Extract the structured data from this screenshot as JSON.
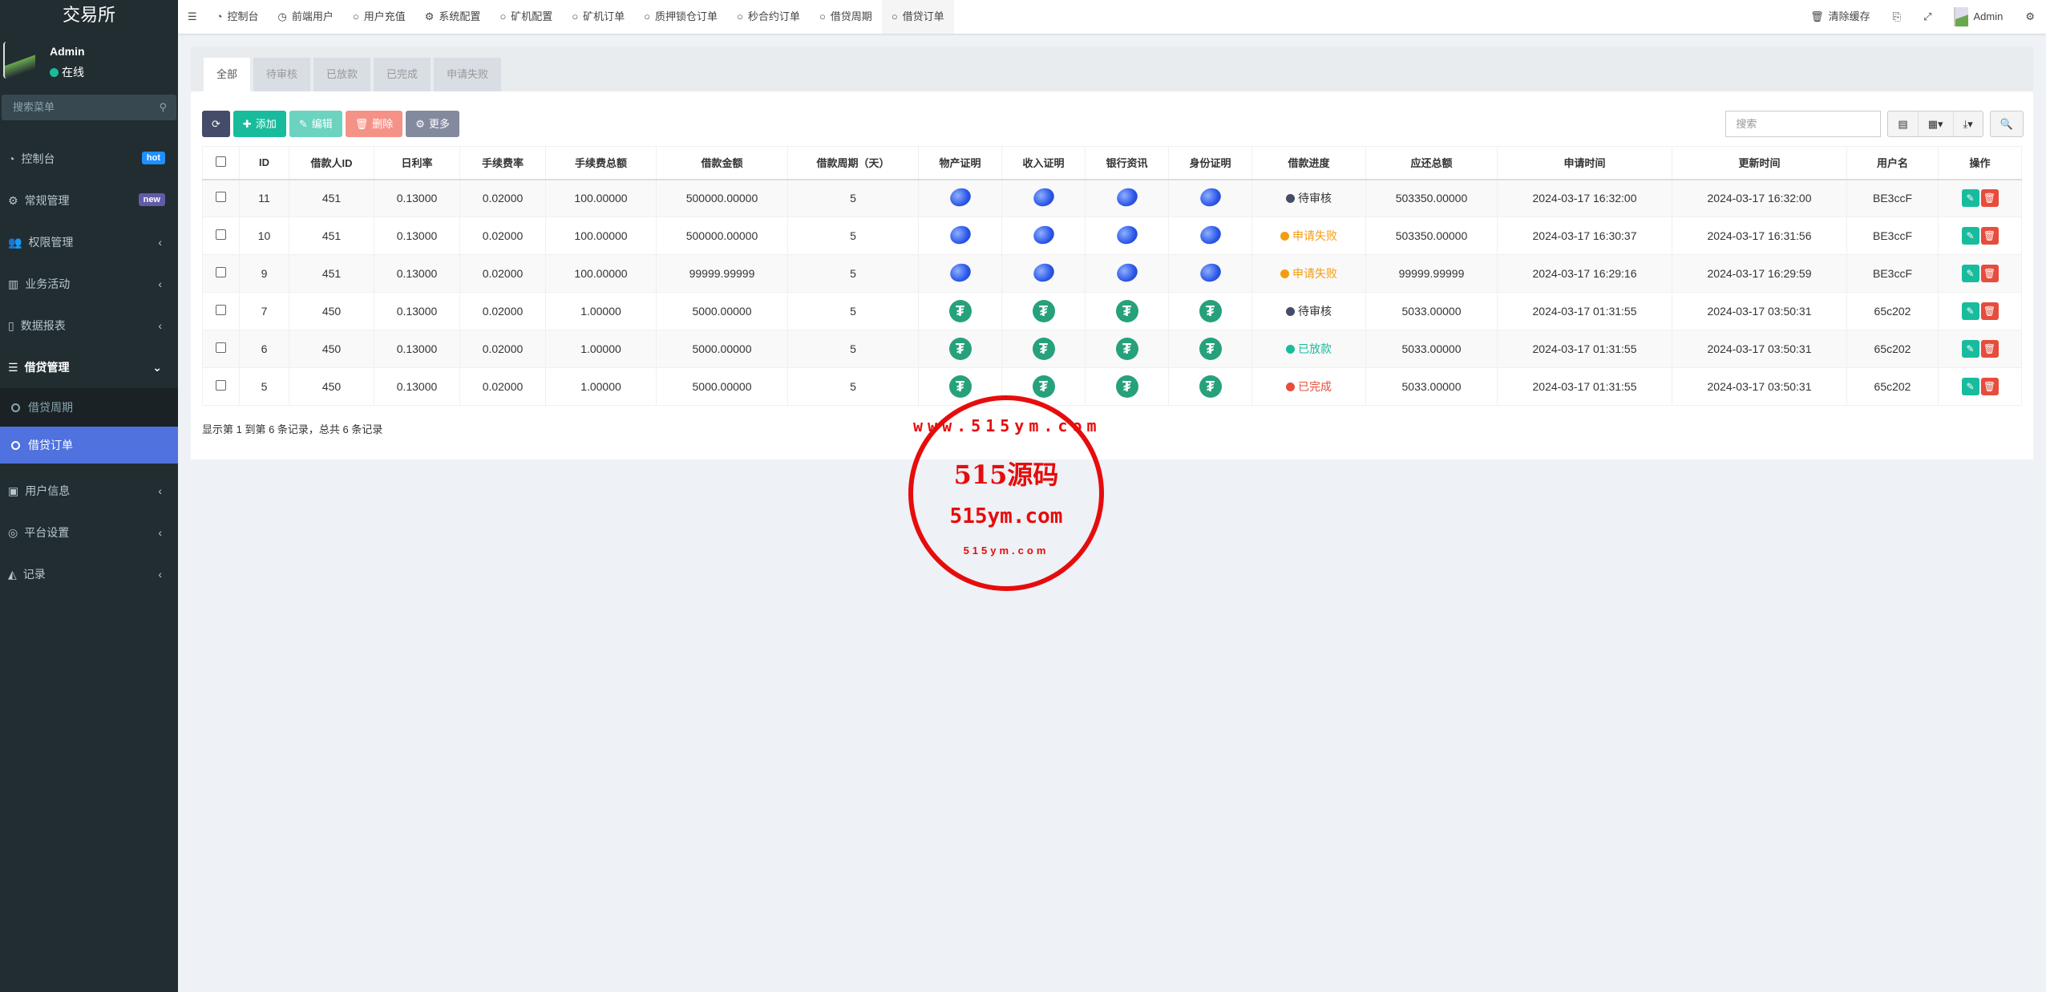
{
  "sidebar": {
    "title": "交易所",
    "user": {
      "name": "Admin",
      "status": "在线"
    },
    "search_placeholder": "搜索菜单",
    "items": [
      {
        "label": "控制台",
        "icon": "dashboard-icon",
        "badge": "hot",
        "badge_color": "#1e90ff"
      },
      {
        "label": "常规管理",
        "icon": "cogs-icon",
        "badge": "new",
        "badge_color": "#605ca8"
      },
      {
        "label": "权限管理",
        "icon": "users-icon"
      },
      {
        "label": "业务活动",
        "icon": "newspaper-icon"
      },
      {
        "label": "数据报表",
        "icon": "file-icon"
      },
      {
        "label": "借贷管理",
        "icon": "list-icon"
      }
    ],
    "sub": [
      {
        "label": "借贷周期"
      },
      {
        "label": "借贷订单"
      }
    ],
    "items2": [
      {
        "label": "用户信息",
        "icon": "address-book-icon"
      },
      {
        "label": "平台设置",
        "icon": "bullseye-icon"
      },
      {
        "label": "记录",
        "icon": "area-chart-icon"
      }
    ]
  },
  "topnav": {
    "items": [
      "控制台",
      "前端用户",
      "用户充值",
      "系统配置",
      "矿机配置",
      "矿机订单",
      "质押锁仓订单",
      "秒合约订单",
      "借贷周期",
      "借贷订单"
    ],
    "clear_cache": "清除缓存",
    "admin": "Admin"
  },
  "tabs": [
    "全部",
    "待审核",
    "已放款",
    "已完成",
    "申请失败"
  ],
  "toolbar": {
    "add": "添加",
    "edit": "编辑",
    "delete": "删除",
    "more": "更多",
    "search_placeholder": "搜索"
  },
  "table": {
    "headers": [
      "ID",
      "借款人ID",
      "日利率",
      "手续费率",
      "手续费总额",
      "借款金额",
      "借款周期（天）",
      "物产证明",
      "收入证明",
      "银行资讯",
      "身份证明",
      "借款进度",
      "应还总额",
      "申请时间",
      "更新时间",
      "用户名",
      "操作"
    ],
    "rows": [
      {
        "id": "11",
        "uid": "451",
        "rate": "0.13000",
        "fee_rate": "0.02000",
        "fee": "100.00000",
        "amount": "500000.00000",
        "days": "5",
        "img": "planet",
        "status": "待审核",
        "status_color": "#444c69",
        "total": "503350.00000",
        "apply": "2024-03-17 16:32:00",
        "update": "2024-03-17 16:32:00",
        "user": "BE3ccF"
      },
      {
        "id": "10",
        "uid": "451",
        "rate": "0.13000",
        "fee_rate": "0.02000",
        "fee": "100.00000",
        "amount": "500000.00000",
        "days": "5",
        "img": "planet",
        "status": "申请失败",
        "status_color": "#f39c12",
        "total": "503350.00000",
        "apply": "2024-03-17 16:30:37",
        "update": "2024-03-17 16:31:56",
        "user": "BE3ccF"
      },
      {
        "id": "9",
        "uid": "451",
        "rate": "0.13000",
        "fee_rate": "0.02000",
        "fee": "100.00000",
        "amount": "99999.99999",
        "days": "5",
        "img": "planet",
        "status": "申请失败",
        "status_color": "#f39c12",
        "total": "99999.99999",
        "apply": "2024-03-17 16:29:16",
        "update": "2024-03-17 16:29:59",
        "user": "BE3ccF"
      },
      {
        "id": "7",
        "uid": "450",
        "rate": "0.13000",
        "fee_rate": "0.02000",
        "fee": "1.00000",
        "amount": "5000.00000",
        "days": "5",
        "img": "tether",
        "status": "待审核",
        "status_color": "#444c69",
        "total": "5033.00000",
        "apply": "2024-03-17 01:31:55",
        "update": "2024-03-17 03:50:31",
        "user": "65c202"
      },
      {
        "id": "6",
        "uid": "450",
        "rate": "0.13000",
        "fee_rate": "0.02000",
        "fee": "1.00000",
        "amount": "5000.00000",
        "days": "5",
        "img": "tether",
        "status": "已放款",
        "status_color": "#18bc9c",
        "total": "5033.00000",
        "apply": "2024-03-17 01:31:55",
        "update": "2024-03-17 03:50:31",
        "user": "65c202"
      },
      {
        "id": "5",
        "uid": "450",
        "rate": "0.13000",
        "fee_rate": "0.02000",
        "fee": "1.00000",
        "amount": "5000.00000",
        "days": "5",
        "img": "tether",
        "status": "已完成",
        "status_color": "#e74c3c",
        "total": "5033.00000",
        "apply": "2024-03-17 01:31:55",
        "update": "2024-03-17 03:50:31",
        "user": "65c202"
      }
    ]
  },
  "footer": "显示第 1 到第 6 条记录，总共 6 条记录",
  "watermark": {
    "main": "515源码",
    "domain": "515ym.com",
    "ring": "www.515ym.com",
    "bottom": "515ym.com"
  }
}
